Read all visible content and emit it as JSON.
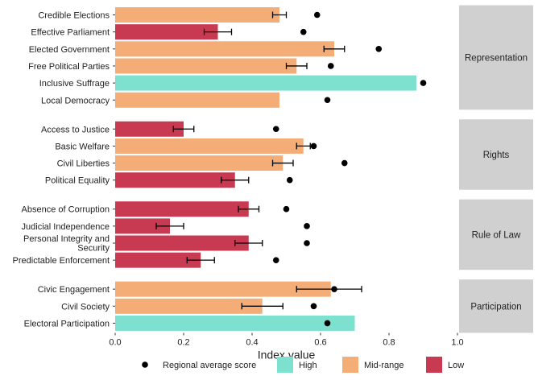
{
  "chart_data": {
    "type": "bar",
    "orientation": "horizontal",
    "xlabel": "Index value",
    "xlim": [
      0,
      1.0
    ],
    "xticks": [
      "0.0",
      "0.2",
      "0.4",
      "0.6",
      "0.8",
      "1.0"
    ],
    "grid": false,
    "legend_position": "bottom",
    "legend": {
      "point_label": "Regional average score",
      "categories": [
        {
          "name": "High",
          "color": "#7ee0ce"
        },
        {
          "name": "Mid-range",
          "color": "#f5ad78"
        },
        {
          "name": "Low",
          "color": "#c83a52"
        }
      ]
    },
    "facets": [
      {
        "name": "Representation",
        "rows": [
          {
            "label": "Credible Elections",
            "value": 0.48,
            "category": "Mid-range",
            "ci": [
              0.46,
              0.5
            ],
            "regional_avg": 0.59
          },
          {
            "label": "Effective Parliament",
            "value": 0.3,
            "category": "Low",
            "ci": [
              0.26,
              0.34
            ],
            "regional_avg": 0.55
          },
          {
            "label": "Elected Government",
            "value": 0.64,
            "category": "Mid-range",
            "ci": [
              0.61,
              0.67
            ],
            "regional_avg": 0.77
          },
          {
            "label": "Free Political Parties",
            "value": 0.53,
            "category": "Mid-range",
            "ci": [
              0.5,
              0.56
            ],
            "regional_avg": 0.63
          },
          {
            "label": "Inclusive Suffrage",
            "value": 0.88,
            "category": "High",
            "ci": null,
            "regional_avg": 0.9
          },
          {
            "label": "Local Democracy",
            "value": 0.48,
            "category": "Mid-range",
            "ci": null,
            "regional_avg": 0.62
          }
        ]
      },
      {
        "name": "Rights",
        "rows": [
          {
            "label": "Access to Justice",
            "value": 0.2,
            "category": "Low",
            "ci": [
              0.17,
              0.23
            ],
            "regional_avg": 0.47
          },
          {
            "label": "Basic Welfare",
            "value": 0.55,
            "category": "Mid-range",
            "ci": [
              0.53,
              0.57
            ],
            "regional_avg": 0.58
          },
          {
            "label": "Civil Liberties",
            "value": 0.49,
            "category": "Mid-range",
            "ci": [
              0.46,
              0.52
            ],
            "regional_avg": 0.67
          },
          {
            "label": "Political Equality",
            "value": 0.35,
            "category": "Low",
            "ci": [
              0.31,
              0.39
            ],
            "regional_avg": 0.51
          }
        ]
      },
      {
        "name": "Rule of Law",
        "rows": [
          {
            "label": "Absence of Corruption",
            "value": 0.39,
            "category": "Low",
            "ci": [
              0.36,
              0.42
            ],
            "regional_avg": 0.5
          },
          {
            "label": "Judicial Independence",
            "value": 0.16,
            "category": "Low",
            "ci": [
              0.12,
              0.2
            ],
            "regional_avg": 0.56
          },
          {
            "label": "Personal Integrity and\nSecurity",
            "value": 0.39,
            "category": "Low",
            "ci": [
              0.35,
              0.43
            ],
            "regional_avg": 0.56
          },
          {
            "label": "Predictable Enforcement",
            "value": 0.25,
            "category": "Low",
            "ci": [
              0.21,
              0.29
            ],
            "regional_avg": 0.47
          }
        ]
      },
      {
        "name": "Participation",
        "rows": [
          {
            "label": "Civic Engagement",
            "value": 0.63,
            "category": "Mid-range",
            "ci": [
              0.53,
              0.72
            ],
            "regional_avg": 0.64
          },
          {
            "label": "Civil Society",
            "value": 0.43,
            "category": "Mid-range",
            "ci": [
              0.37,
              0.49
            ],
            "regional_avg": 0.58
          },
          {
            "label": "Electoral Participation",
            "value": 0.7,
            "category": "High",
            "ci": null,
            "regional_avg": 0.62
          }
        ]
      }
    ]
  }
}
